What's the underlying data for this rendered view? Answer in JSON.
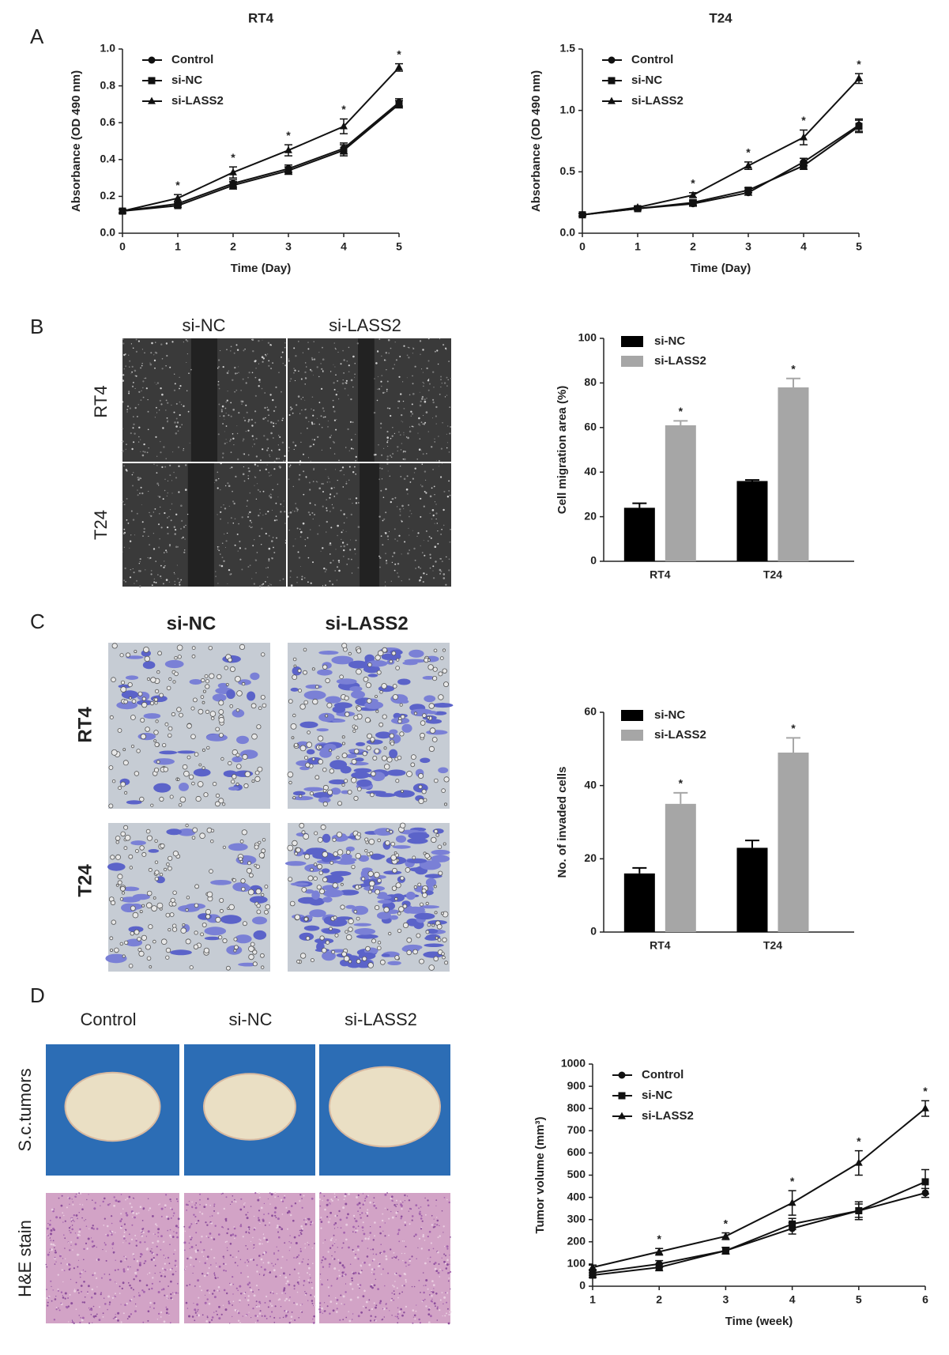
{
  "figure": {
    "panel_labels": [
      "A",
      "B",
      "C",
      "D"
    ],
    "B_images": {
      "columns": [
        "si-NC",
        "si-LASS2"
      ],
      "rows": [
        "RT4",
        "T24"
      ]
    },
    "C_images": {
      "columns": [
        "si-NC",
        "si-LASS2"
      ],
      "rows": [
        "RT4",
        "T24"
      ]
    },
    "D_images": {
      "columns": [
        "Control",
        "si-NC",
        "si-LASS2"
      ],
      "rows": [
        "S.c.tumors",
        "H&E stain"
      ]
    }
  },
  "chart_data": [
    {
      "type": "line",
      "title": "RT4",
      "xlabel": "Time (Day)",
      "ylabel": "Absorbance (OD 490 nm)",
      "x": [
        0,
        1,
        2,
        3,
        4,
        5
      ],
      "xlim": [
        0,
        5
      ],
      "xticks": [
        0,
        1,
        2,
        3,
        4,
        5
      ],
      "ylim": [
        0,
        1
      ],
      "yticks": [
        {
          "value": 0,
          "label": "0.0"
        },
        0.2,
        0.4,
        0.6,
        0.8,
        {
          "value": 1,
          "label": "1.0"
        }
      ],
      "legend": "upper left",
      "series": [
        {
          "name": "Control",
          "color": "#111111",
          "marker": "circle",
          "values": [
            0.12,
            0.16,
            0.27,
            0.35,
            0.46,
            0.71
          ],
          "errors": [
            0.01,
            0.01,
            0.02,
            0.02,
            0.03,
            0.02
          ]
        },
        {
          "name": "si-NC",
          "color": "#111111",
          "marker": "square",
          "values": [
            0.12,
            0.15,
            0.26,
            0.34,
            0.45,
            0.7
          ],
          "errors": [
            0.01,
            0.01,
            0.02,
            0.02,
            0.03,
            0.02
          ]
        },
        {
          "name": "si-LASS2",
          "color": "#111111",
          "marker": "triangle",
          "values": [
            0.12,
            0.19,
            0.33,
            0.45,
            0.58,
            0.9
          ],
          "errors": [
            0.01,
            0.02,
            0.03,
            0.03,
            0.04,
            0.02
          ]
        }
      ],
      "annotations": [
        {
          "series": 2,
          "index": 1,
          "text": "*"
        },
        {
          "series": 2,
          "index": 2,
          "text": "*"
        },
        {
          "series": 2,
          "index": 3,
          "text": "*"
        },
        {
          "series": 2,
          "index": 4,
          "text": "*"
        },
        {
          "series": 2,
          "index": 5,
          "text": "*"
        }
      ]
    },
    {
      "type": "line",
      "title": "T24",
      "xlabel": "Time (Day)",
      "ylabel": "Absorbance (OD 490 nm)",
      "x": [
        0,
        1,
        2,
        3,
        4,
        5
      ],
      "xlim": [
        0,
        5
      ],
      "xticks": [
        0,
        1,
        2,
        3,
        4,
        5
      ],
      "ylim": [
        0,
        1.5
      ],
      "yticks": [
        {
          "value": 0,
          "label": "0.0"
        },
        0.5,
        {
          "value": 1,
          "label": "1.0"
        },
        1.5
      ],
      "legend": "upper left",
      "series": [
        {
          "name": "Control",
          "color": "#111111",
          "marker": "circle",
          "values": [
            0.15,
            0.2,
            0.24,
            0.33,
            0.58,
            0.88
          ],
          "errors": [
            0.01,
            0.01,
            0.02,
            0.02,
            0.03,
            0.05
          ]
        },
        {
          "name": "si-NC",
          "color": "#111111",
          "marker": "square",
          "values": [
            0.15,
            0.2,
            0.25,
            0.35,
            0.55,
            0.87
          ],
          "errors": [
            0.01,
            0.01,
            0.02,
            0.02,
            0.03,
            0.05
          ]
        },
        {
          "name": "si-LASS2",
          "color": "#111111",
          "marker": "triangle",
          "values": [
            0.15,
            0.21,
            0.31,
            0.55,
            0.78,
            1.26
          ],
          "errors": [
            0.01,
            0.01,
            0.02,
            0.03,
            0.06,
            0.04
          ]
        }
      ],
      "annotations": [
        {
          "series": 2,
          "index": 2,
          "text": "*"
        },
        {
          "series": 2,
          "index": 3,
          "text": "*"
        },
        {
          "series": 2,
          "index": 4,
          "text": "*"
        },
        {
          "series": 2,
          "index": 5,
          "text": "*"
        }
      ]
    },
    {
      "type": "bar",
      "ylabel": "Cell migration area (%)",
      "categories": [
        "RT4",
        "T24"
      ],
      "ylim": [
        0,
        100
      ],
      "yticks": [
        0,
        20,
        40,
        60,
        80,
        100
      ],
      "legend": "upper left",
      "series": [
        {
          "name": "si-NC",
          "color": "#000000",
          "values": [
            24,
            36
          ],
          "errors": [
            2,
            0.5
          ]
        },
        {
          "name": "si-LASS2",
          "color": "#a6a6a6",
          "values": [
            61,
            78
          ],
          "errors": [
            2,
            4
          ]
        }
      ],
      "annotations": [
        {
          "series": 1,
          "index": 0,
          "text": "*"
        },
        {
          "series": 1,
          "index": 1,
          "text": "*"
        }
      ]
    },
    {
      "type": "bar",
      "ylabel": "No. of invaded cells",
      "categories": [
        "RT4",
        "T24"
      ],
      "ylim": [
        0,
        60
      ],
      "yticks": [
        0,
        20,
        40,
        60
      ],
      "legend": "upper left",
      "series": [
        {
          "name": "si-NC",
          "color": "#000000",
          "values": [
            16,
            23
          ],
          "errors": [
            1.5,
            2
          ]
        },
        {
          "name": "si-LASS2",
          "color": "#a6a6a6",
          "values": [
            35,
            49
          ],
          "errors": [
            3,
            4
          ]
        }
      ],
      "annotations": [
        {
          "series": 1,
          "index": 0,
          "text": "*"
        },
        {
          "series": 1,
          "index": 1,
          "text": "*"
        }
      ]
    },
    {
      "type": "line",
      "xlabel": "Time (week)",
      "ylabel": "Tumor volume (mm³)",
      "x": [
        1,
        2,
        3,
        4,
        5,
        6
      ],
      "xlim": [
        1,
        6
      ],
      "xticks": [
        1,
        2,
        3,
        4,
        5,
        6
      ],
      "ylim": [
        0,
        1000
      ],
      "yticks": [
        0,
        100,
        200,
        300,
        400,
        500,
        600,
        700,
        800,
        900,
        1000
      ],
      "legend": "upper left",
      "series": [
        {
          "name": "Control",
          "color": "#111111",
          "marker": "circle",
          "values": [
            60,
            100,
            160,
            260,
            340,
            420
          ],
          "errors": [
            10,
            15,
            15,
            25,
            30,
            20
          ]
        },
        {
          "name": "si-NC",
          "color": "#111111",
          "marker": "square",
          "values": [
            50,
            85,
            160,
            280,
            340,
            470
          ],
          "errors": [
            10,
            15,
            15,
            25,
            40,
            55
          ]
        },
        {
          "name": "si-LASS2",
          "color": "#111111",
          "marker": "triangle",
          "values": [
            85,
            155,
            225,
            375,
            555,
            800
          ],
          "errors": [
            10,
            15,
            15,
            55,
            55,
            35
          ]
        }
      ],
      "annotations": [
        {
          "series": 2,
          "index": 1,
          "text": "*"
        },
        {
          "series": 2,
          "index": 2,
          "text": "*"
        },
        {
          "series": 2,
          "index": 3,
          "text": "*"
        },
        {
          "series": 2,
          "index": 4,
          "text": "*"
        },
        {
          "series": 2,
          "index": 5,
          "text": "*"
        }
      ]
    }
  ]
}
